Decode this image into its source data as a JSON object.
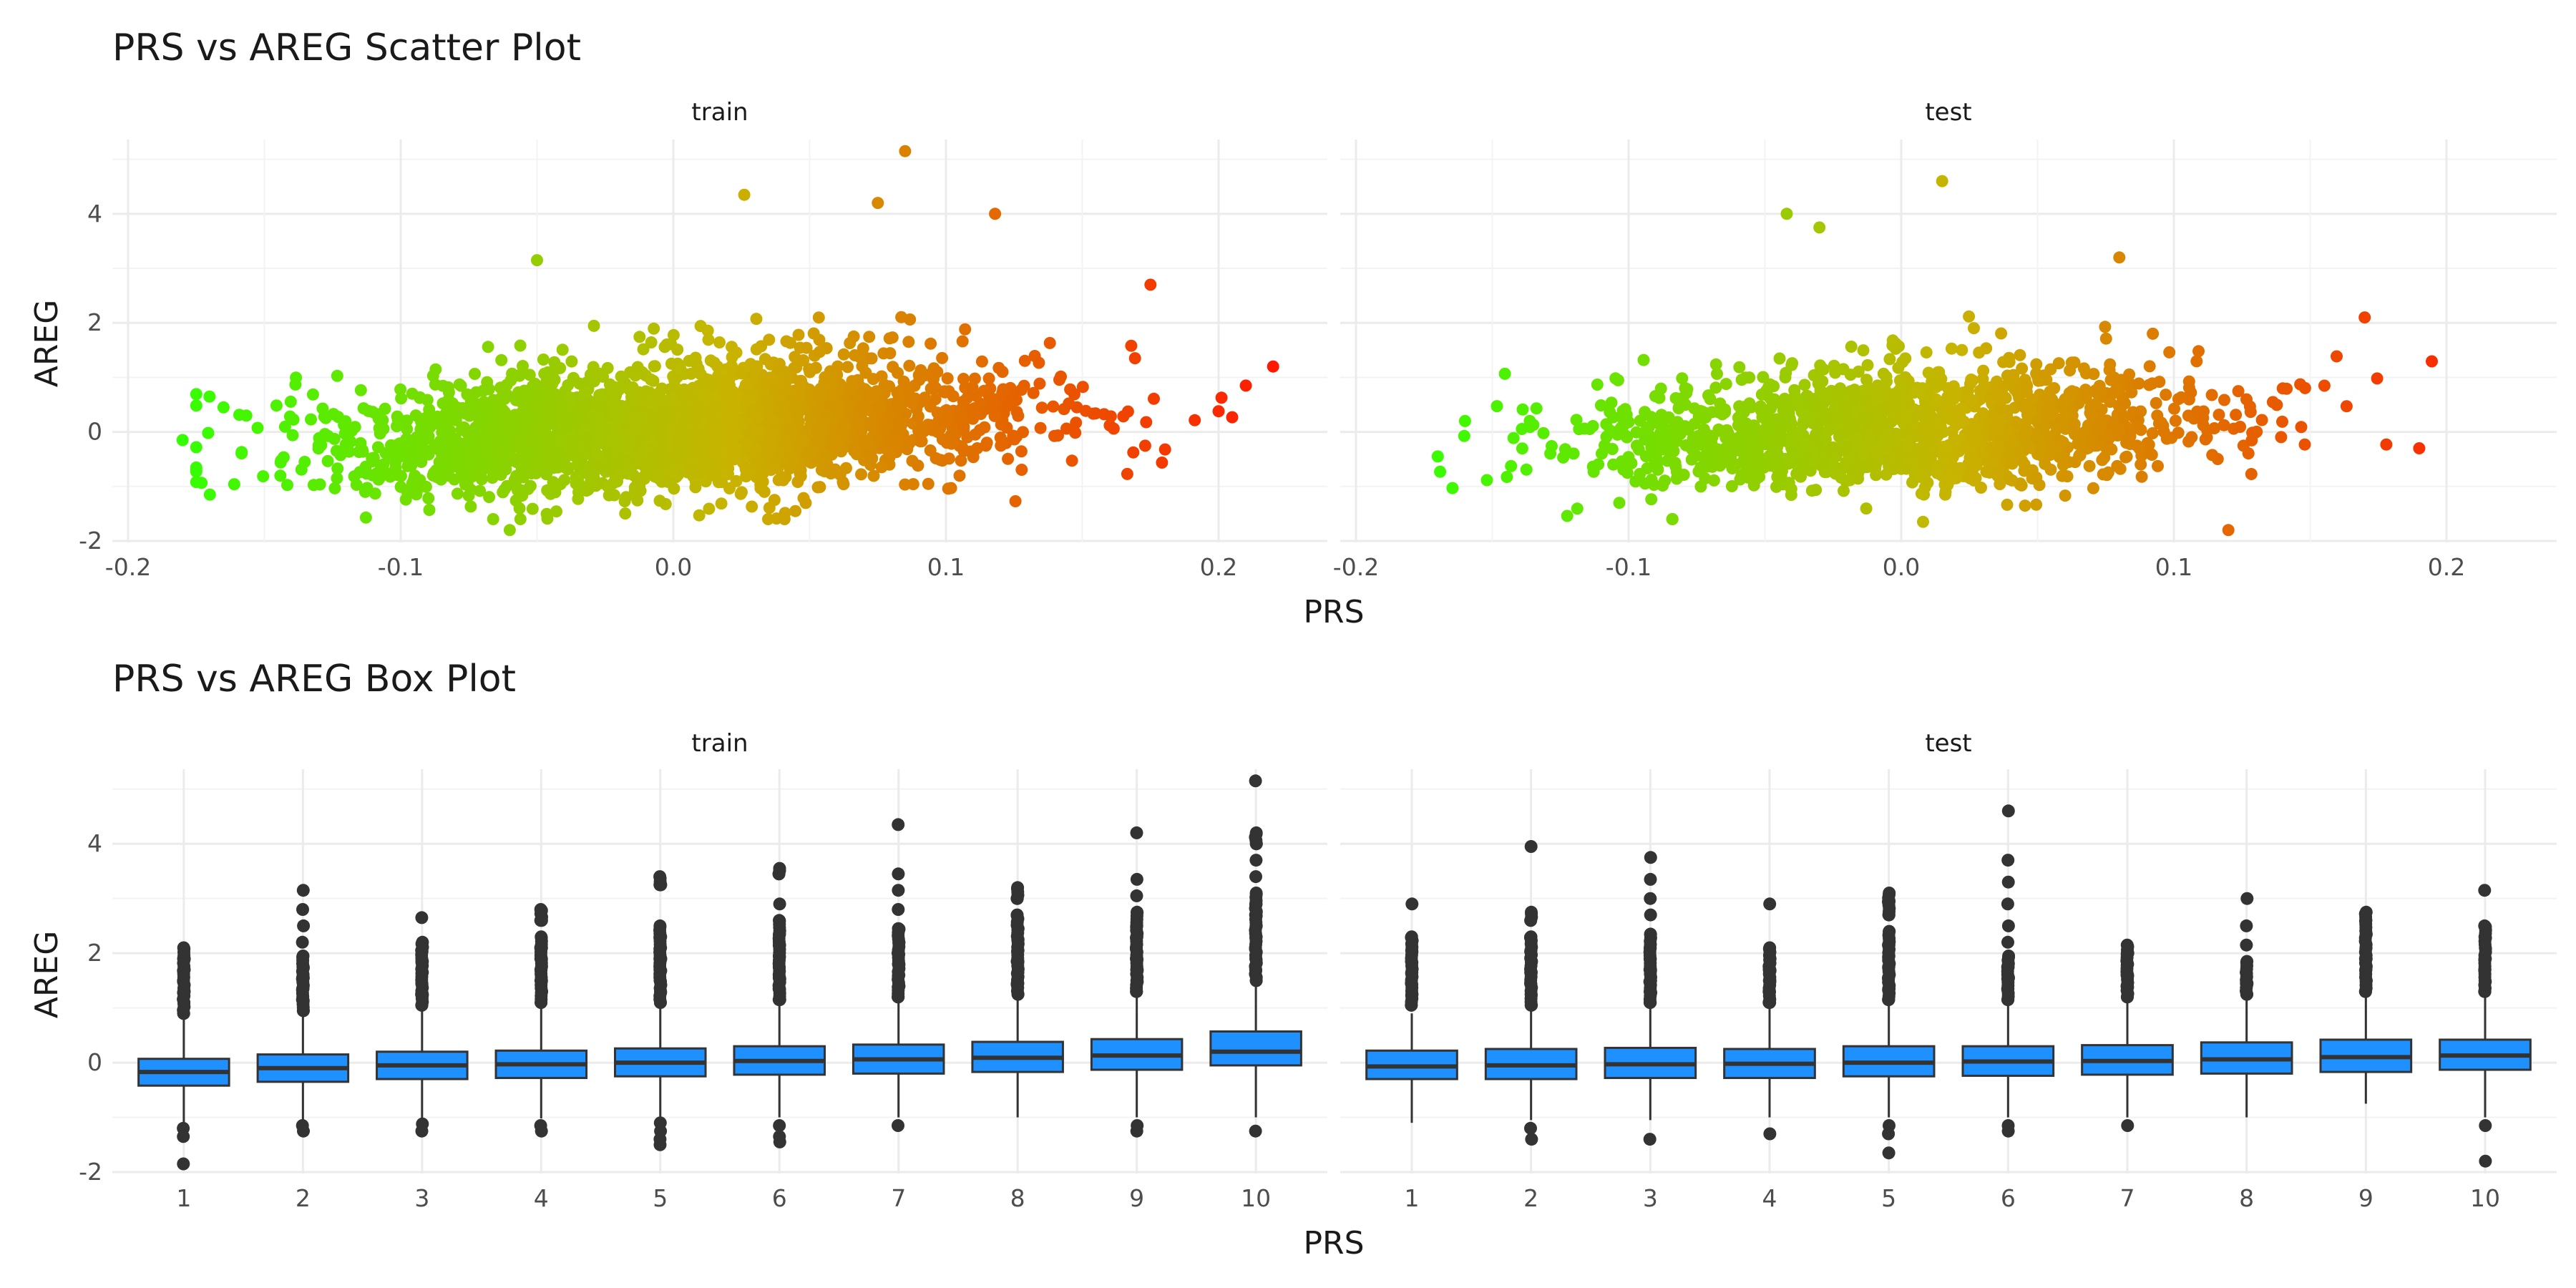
{
  "chart_data": [
    {
      "type": "scatter",
      "title": "PRS vs AREG Scatter Plot",
      "xlabel": "PRS",
      "ylabel": "AREG",
      "xlim": [
        -0.2,
        0.24
      ],
      "ylim": [
        -2,
        5.3
      ],
      "x_ticks": [
        "-0.2",
        "-0.1",
        "0.0",
        "0.1",
        "0.2"
      ],
      "y_ticks": [
        "-2",
        "0",
        "2",
        "4"
      ],
      "color_scale": {
        "low": "#33ff00",
        "mid": "#c8b400",
        "high": "#ff1a00"
      },
      "facets": [
        {
          "name": "train",
          "n_points": 2600,
          "x_mean": 0.0,
          "x_sd": 0.062,
          "slope": 2.4,
          "y_sd": 0.52,
          "notable_points": [
            {
              "x": -0.18,
              "y": -0.15
            },
            {
              "x": -0.165,
              "y": 0.45
            },
            {
              "x": -0.17,
              "y": -1.15
            },
            {
              "x": 0.22,
              "y": 1.2
            },
            {
              "x": 0.21,
              "y": 0.85
            },
            {
              "x": 0.2,
              "y": 0.38
            },
            {
              "x": 0.085,
              "y": 5.15
            },
            {
              "x": 0.026,
              "y": 4.35
            },
            {
              "x": 0.075,
              "y": 4.2
            },
            {
              "x": 0.118,
              "y": 4.0
            },
            {
              "x": -0.05,
              "y": 3.15
            },
            {
              "x": -0.06,
              "y": -1.8
            },
            {
              "x": 0.175,
              "y": 2.7
            }
          ]
        },
        {
          "name": "test",
          "n_points": 1500,
          "x_mean": 0.0,
          "x_sd": 0.058,
          "slope": 1.6,
          "y_sd": 0.5,
          "notable_points": [
            {
              "x": -0.17,
              "y": -0.45
            },
            {
              "x": -0.16,
              "y": 0.2
            },
            {
              "x": 0.19,
              "y": -0.3
            },
            {
              "x": 0.17,
              "y": 2.1
            },
            {
              "x": 0.015,
              "y": 4.6
            },
            {
              "x": -0.042,
              "y": 4.0
            },
            {
              "x": -0.03,
              "y": 3.75
            },
            {
              "x": 0.12,
              "y": -1.8
            },
            {
              "x": 0.008,
              "y": -1.65
            },
            {
              "x": 0.08,
              "y": 3.2
            }
          ]
        }
      ]
    },
    {
      "type": "box",
      "title": "PRS vs AREG Box Plot",
      "xlabel": "PRS",
      "ylabel": "AREG",
      "ylim": [
        -2,
        5.3
      ],
      "categories": [
        "1",
        "2",
        "3",
        "4",
        "5",
        "6",
        "7",
        "8",
        "9",
        "10"
      ],
      "y_ticks": [
        "-2",
        "0",
        "2",
        "4"
      ],
      "box_color": "#1e90ff",
      "facets": [
        {
          "name": "train",
          "boxes": [
            {
              "q1": -0.42,
              "median": -0.17,
              "q3": 0.07,
              "lo": -1.1,
              "hi": 0.8,
              "outliers_hi": [
                0.9,
                1.1,
                1.3,
                1.5,
                1.7,
                1.9,
                2.1
              ],
              "outliers_lo": [
                -1.2,
                -1.35,
                -1.85
              ]
            },
            {
              "q1": -0.35,
              "median": -0.1,
              "q3": 0.15,
              "lo": -1.08,
              "hi": 0.88,
              "outliers_hi": [
                0.95,
                1.15,
                1.35,
                1.55,
                1.75,
                1.95,
                2.2,
                2.5,
                2.8,
                3.15
              ],
              "outliers_lo": [
                -1.15,
                -1.25
              ]
            },
            {
              "q1": -0.3,
              "median": -0.05,
              "q3": 0.2,
              "lo": -1.05,
              "hi": 0.95,
              "outliers_hi": [
                1.05,
                1.25,
                1.45,
                1.65,
                1.85,
                2.05,
                2.2,
                2.65
              ],
              "outliers_lo": [
                -1.12,
                -1.25
              ]
            },
            {
              "q1": -0.28,
              "median": -0.03,
              "q3": 0.22,
              "lo": -1.02,
              "hi": 1.0,
              "outliers_hi": [
                1.1,
                1.3,
                1.5,
                1.7,
                1.9,
                2.1,
                2.3,
                2.6,
                2.8
              ],
              "outliers_lo": [
                -1.15,
                -1.25
              ]
            },
            {
              "q1": -0.25,
              "median": 0.0,
              "q3": 0.26,
              "lo": -1.0,
              "hi": 1.0,
              "outliers_hi": [
                1.1,
                1.3,
                1.5,
                1.7,
                1.9,
                2.1,
                2.3,
                2.5,
                3.25,
                3.4
              ],
              "outliers_lo": [
                -1.1,
                -1.25,
                -1.4,
                -1.5
              ]
            },
            {
              "q1": -0.22,
              "median": 0.03,
              "q3": 0.3,
              "lo": -1.0,
              "hi": 1.05,
              "outliers_hi": [
                1.15,
                1.35,
                1.55,
                1.75,
                1.95,
                2.15,
                2.35,
                2.6,
                2.9,
                3.45,
                3.55
              ],
              "outliers_lo": [
                -1.15,
                -1.35,
                -1.45
              ]
            },
            {
              "q1": -0.2,
              "median": 0.06,
              "q3": 0.33,
              "lo": -1.0,
              "hi": 1.1,
              "outliers_hi": [
                1.2,
                1.4,
                1.6,
                1.8,
                2.0,
                2.2,
                2.45,
                2.8,
                3.15,
                3.45,
                4.35
              ],
              "outliers_lo": [
                -1.15
              ]
            },
            {
              "q1": -0.17,
              "median": 0.09,
              "q3": 0.38,
              "lo": -1.0,
              "hi": 1.15,
              "outliers_hi": [
                1.25,
                1.45,
                1.65,
                1.85,
                2.05,
                2.25,
                2.45,
                2.7,
                3.0,
                3.2
              ],
              "outliers_lo": []
            },
            {
              "q1": -0.13,
              "median": 0.13,
              "q3": 0.43,
              "lo": -1.0,
              "hi": 1.2,
              "outliers_hi": [
                1.3,
                1.5,
                1.7,
                1.9,
                2.1,
                2.3,
                2.5,
                2.75,
                3.05,
                3.35,
                4.2
              ],
              "outliers_lo": [
                -1.15,
                -1.25
              ]
            },
            {
              "q1": -0.05,
              "median": 0.2,
              "q3": 0.57,
              "lo": -1.0,
              "hi": 1.4,
              "outliers_hi": [
                1.5,
                1.7,
                1.9,
                2.1,
                2.3,
                2.5,
                2.7,
                2.9,
                3.1,
                3.4,
                3.7,
                4.0,
                4.2,
                5.15
              ],
              "outliers_lo": [
                -1.25
              ]
            }
          ]
        },
        {
          "name": "test",
          "boxes": [
            {
              "q1": -0.3,
              "median": -0.07,
              "q3": 0.22,
              "lo": -1.1,
              "hi": 0.9,
              "outliers_hi": [
                1.05,
                1.25,
                1.45,
                1.65,
                1.85,
                2.05,
                2.3,
                2.9
              ],
              "outliers_lo": []
            },
            {
              "q1": -0.3,
              "median": -0.05,
              "q3": 0.25,
              "lo": -1.05,
              "hi": 0.95,
              "outliers_hi": [
                1.05,
                1.25,
                1.45,
                1.65,
                1.85,
                2.05,
                2.3,
                2.6,
                2.75,
                3.95
              ],
              "outliers_lo": [
                -1.2,
                -1.4
              ]
            },
            {
              "q1": -0.28,
              "median": -0.03,
              "q3": 0.27,
              "lo": -1.05,
              "hi": 1.0,
              "outliers_hi": [
                1.1,
                1.3,
                1.5,
                1.7,
                1.9,
                2.1,
                2.35,
                2.7,
                3.0,
                3.35,
                3.75
              ],
              "outliers_lo": [
                -1.4
              ]
            },
            {
              "q1": -0.28,
              "median": -0.02,
              "q3": 0.25,
              "lo": -1.0,
              "hi": 1.0,
              "outliers_hi": [
                1.1,
                1.3,
                1.5,
                1.7,
                1.9,
                2.1,
                2.9
              ],
              "outliers_lo": [
                -1.3
              ]
            },
            {
              "q1": -0.25,
              "median": 0.0,
              "q3": 0.3,
              "lo": -1.0,
              "hi": 1.05,
              "outliers_hi": [
                1.15,
                1.35,
                1.55,
                1.75,
                1.95,
                2.15,
                2.4,
                2.7,
                2.95,
                3.1
              ],
              "outliers_lo": [
                -1.15,
                -1.3,
                -1.65
              ]
            },
            {
              "q1": -0.24,
              "median": 0.02,
              "q3": 0.3,
              "lo": -1.0,
              "hi": 1.05,
              "outliers_hi": [
                1.15,
                1.35,
                1.55,
                1.75,
                1.95,
                2.2,
                2.5,
                2.9,
                3.3,
                3.7,
                4.6
              ],
              "outliers_lo": [
                -1.15,
                -1.25
              ]
            },
            {
              "q1": -0.22,
              "median": 0.03,
              "q3": 0.32,
              "lo": -1.0,
              "hi": 1.1,
              "outliers_hi": [
                1.2,
                1.4,
                1.6,
                1.8,
                2.0,
                2.15
              ],
              "outliers_lo": [
                -1.15
              ]
            },
            {
              "q1": -0.2,
              "median": 0.06,
              "q3": 0.37,
              "lo": -1.0,
              "hi": 1.15,
              "outliers_hi": [
                1.25,
                1.45,
                1.65,
                1.85,
                2.15,
                2.5,
                3.0
              ],
              "outliers_lo": []
            },
            {
              "q1": -0.17,
              "median": 0.1,
              "q3": 0.42,
              "lo": -0.75,
              "hi": 1.2,
              "outliers_hi": [
                1.3,
                1.5,
                1.7,
                1.9,
                2.1,
                2.35,
                2.6,
                2.75
              ],
              "outliers_lo": []
            },
            {
              "q1": -0.13,
              "median": 0.13,
              "q3": 0.42,
              "lo": -1.0,
              "hi": 1.2,
              "outliers_hi": [
                1.3,
                1.5,
                1.7,
                1.9,
                2.1,
                2.3,
                2.5,
                3.15
              ],
              "outliers_lo": [
                -1.15,
                -1.8
              ]
            }
          ]
        }
      ]
    }
  ]
}
